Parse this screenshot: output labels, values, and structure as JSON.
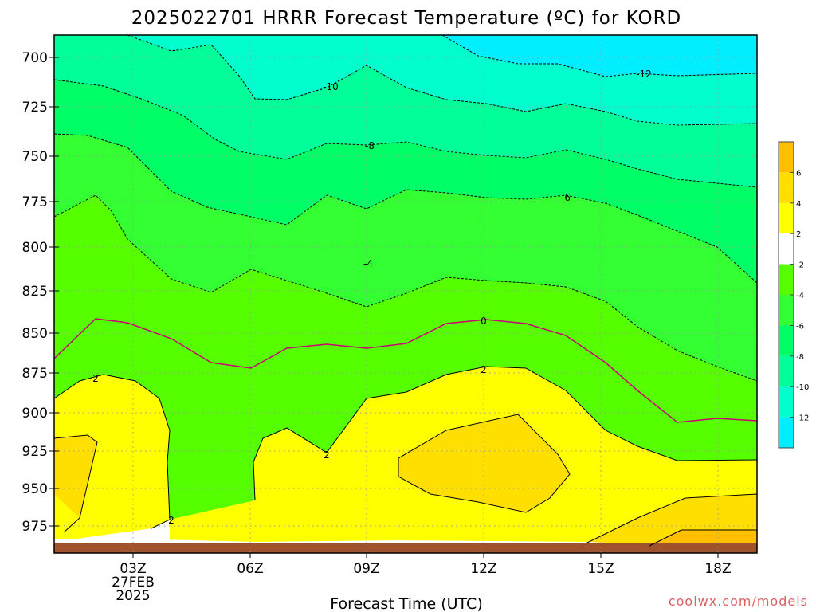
{
  "chart_data": {
    "type": "heatmap",
    "title": "2025022701 HRRR Forecast Temperature (ºC) for KORD",
    "xlabel": "Forecast Time (UTC)",
    "ylabel": "",
    "credit": "coolwx.com/models",
    "y_axis": {
      "range": [
        688,
        988
      ],
      "direction": "pressure decreasing upward",
      "ticks": [
        "700",
        "725",
        "750",
        "775",
        "800",
        "825",
        "850",
        "875",
        "900",
        "925",
        "950",
        "975"
      ]
    },
    "x_axis": {
      "range_hours": [
        0,
        18
      ],
      "ticks": [
        {
          "hour": 3,
          "label": "03Z",
          "sub1": "27FEB",
          "sub2": "2025"
        },
        {
          "hour": 6,
          "label": "06Z"
        },
        {
          "hour": 9,
          "label": "09Z"
        },
        {
          "hour": 12,
          "label": "12Z"
        },
        {
          "hour": 15,
          "label": "15Z"
        },
        {
          "hour": 18,
          "label": "18Z"
        }
      ]
    },
    "grid": true,
    "contour_labels": [
      "-10",
      "-12",
      "-8",
      "-6",
      "-4",
      "0",
      "2",
      "2",
      "2",
      "2"
    ],
    "colorbar": {
      "placement": "right",
      "labels": [
        "6",
        "4",
        "2",
        "-2",
        "-4",
        "-6",
        "-8",
        "-10",
        "-12"
      ],
      "bins": [
        {
          "range": "6 to 8",
          "color": "#ffbf00"
        },
        {
          "range": "4 to 6",
          "color": "#ffdf00"
        },
        {
          "range": "2 to 4",
          "color": "#ffff00"
        },
        {
          "range": "-2 to 2",
          "color": "#ffffff"
        },
        {
          "range": "-4 to -2",
          "color": "#55ff00"
        },
        {
          "range": "-6 to -4",
          "color": "#33ff33"
        },
        {
          "range": "-8 to -6",
          "color": "#00ff66"
        },
        {
          "range": "-10 to -8",
          "color": "#00ff99"
        },
        {
          "range": "-12 to -10",
          "color": "#00ffcc"
        },
        {
          "range": "-14 to -12",
          "color": "#00eeff"
        }
      ]
    },
    "zero_contour_color": "#cc0077",
    "ground_color": "#a0522d"
  }
}
